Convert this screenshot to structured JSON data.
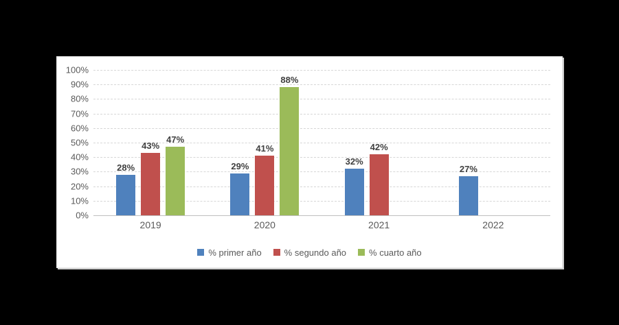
{
  "page": {
    "background_color": "#000000",
    "panel_background_color": "#FFFFFF"
  },
  "chart_data": {
    "type": "bar",
    "title": "",
    "xlabel": "",
    "ylabel": "",
    "categories": [
      "2019",
      "2020",
      "2021",
      "2022"
    ],
    "series": [
      {
        "name": "% primer año",
        "color": "#4F81BD",
        "values": [
          28,
          29,
          32,
          27
        ]
      },
      {
        "name": "% segundo año",
        "color": "#C0504D",
        "values": [
          43,
          41,
          42,
          null
        ]
      },
      {
        "name": "% cuarto año",
        "color": "#9BBB59",
        "values": [
          47,
          88,
          null,
          null
        ]
      }
    ],
    "ylim": [
      0,
      100
    ],
    "ytick_step": 10,
    "ytick_suffix": "%",
    "ytick_labels": [
      "0%",
      "10%",
      "20%",
      "30%",
      "40%",
      "50%",
      "60%",
      "70%",
      "80%",
      "90%",
      "100%"
    ],
    "data_labels": [
      "28%",
      "43%",
      "47%",
      "29%",
      "41%",
      "88%",
      "32%",
      "42%",
      "27%"
    ],
    "grid": true,
    "gridline_color": "#D6D6D6",
    "axis_line_color": "#BFBFBF",
    "axis_label_color": "#595959",
    "data_label_color": "#3F3F3F",
    "legend_position": "bottom"
  }
}
